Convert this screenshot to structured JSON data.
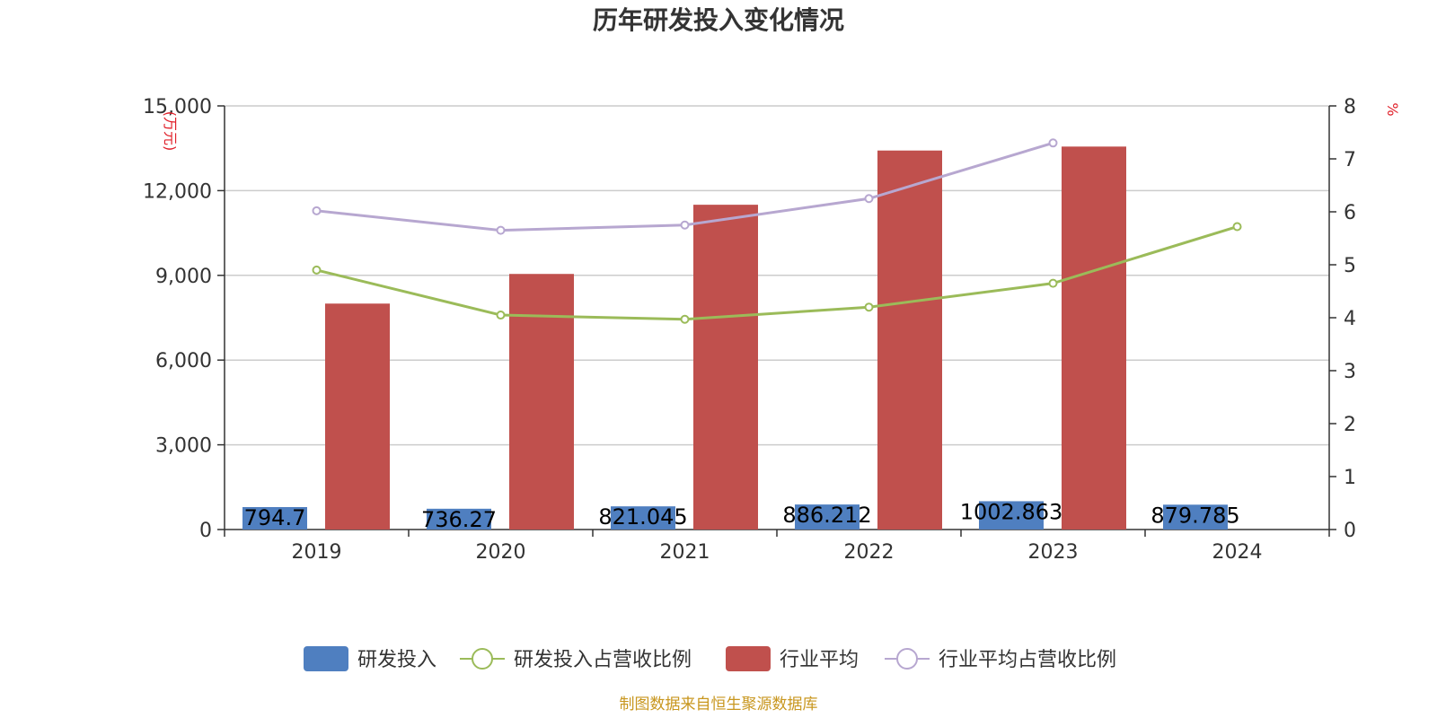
{
  "chart_data": {
    "type": "bar",
    "title": "历年研发投入变化情况",
    "categories": [
      "2019",
      "2020",
      "2021",
      "2022",
      "2023",
      "2024"
    ],
    "y_left": {
      "unit": "万元",
      "range": [
        0,
        15000
      ],
      "ticks": [
        "0",
        "3,000",
        "6,000",
        "9,000",
        "12,000",
        "15,000"
      ],
      "tick_values": [
        0,
        3000,
        6000,
        9000,
        12000,
        15000
      ]
    },
    "y_right": {
      "unit": "%",
      "range": [
        0,
        8
      ],
      "ticks": [
        "0",
        "1",
        "2",
        "3",
        "4",
        "5",
        "6",
        "7",
        "8"
      ],
      "tick_values": [
        0,
        1,
        2,
        3,
        4,
        5,
        6,
        7,
        8
      ]
    },
    "grid": true,
    "legend_position": "bottom",
    "series": [
      {
        "name": "研发投入",
        "type": "bar",
        "axis": "left",
        "color": "#4f7fc0",
        "values": [
          794.7,
          736.27,
          821.045,
          886.212,
          1002.863,
          879.785
        ],
        "labels": [
          "794.7",
          "736.27",
          "821.045",
          "886.212",
          "1002.863",
          "879.785"
        ]
      },
      {
        "name": "研发投入占营收比例",
        "type": "line",
        "axis": "right",
        "color": "#9bbb59",
        "values": [
          4.9,
          4.05,
          3.97,
          4.2,
          4.65,
          5.72
        ]
      },
      {
        "name": "行业平均",
        "type": "bar",
        "axis": "left",
        "color": "#c0504d",
        "values": [
          8000,
          9050,
          11500,
          13420,
          13560,
          null
        ]
      },
      {
        "name": "行业平均占营收比例",
        "type": "line",
        "axis": "right",
        "color": "#b7a7d0",
        "values": [
          6.02,
          5.65,
          5.75,
          6.25,
          7.3,
          null
        ]
      }
    ],
    "source": "制图数据来自恒生聚源数据库"
  }
}
